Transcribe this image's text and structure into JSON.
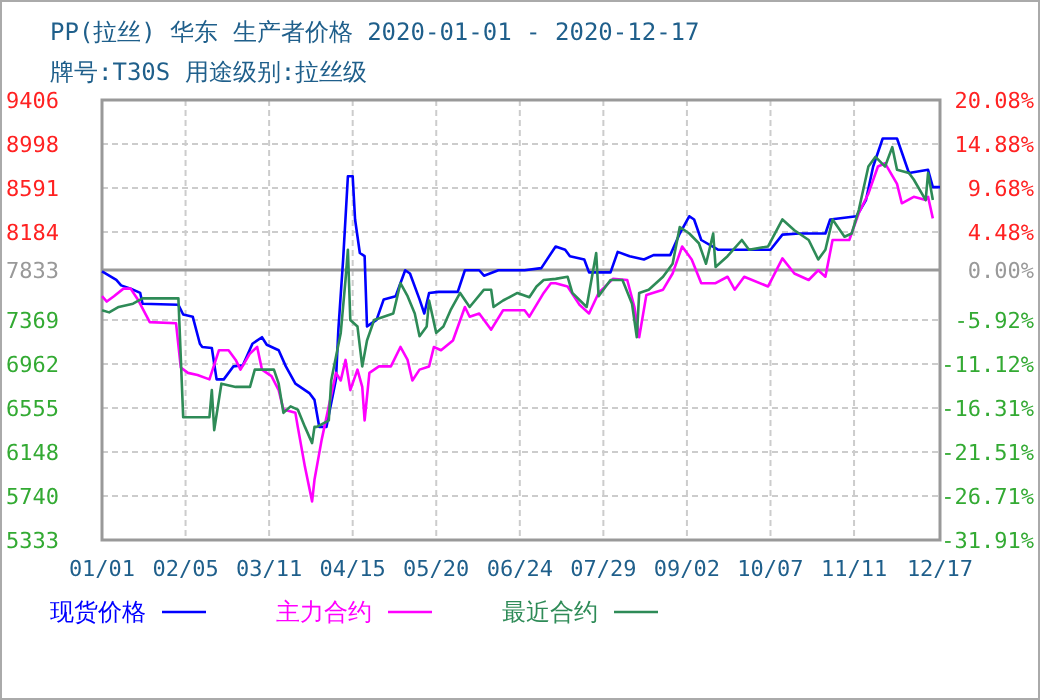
{
  "chart_data": {
    "type": "line",
    "title": "PP(拉丝) 华东 生产者价格 2020-01-01 - 2020-12-17",
    "subtitle": "牌号:T30S 用途级别:拉丝级",
    "xlim": [
      "2020-01-01",
      "2020-12-17"
    ],
    "xticks": [
      {
        "value": "2020-01-01",
        "label": "01/01"
      },
      {
        "value": "2020-02-05",
        "label": "02/05"
      },
      {
        "value": "2020-03-11",
        "label": "03/11"
      },
      {
        "value": "2020-04-15",
        "label": "04/15"
      },
      {
        "value": "2020-05-20",
        "label": "05/20"
      },
      {
        "value": "2020-06-24",
        "label": "06/24"
      },
      {
        "value": "2020-07-29",
        "label": "07/29"
      },
      {
        "value": "2020-09-02",
        "label": "09/02"
      },
      {
        "value": "2020-10-07",
        "label": "10/07"
      },
      {
        "value": "2020-11-11",
        "label": "11/11"
      },
      {
        "value": "2020-12-17",
        "label": "12/17"
      }
    ],
    "ylim": [
      5333,
      9406
    ],
    "yticks": [
      9406,
      8998,
      8591,
      8184,
      7833,
      7369,
      6962,
      6555,
      6148,
      5740,
      5333
    ],
    "y2lim": [
      -31.91,
      20.08
    ],
    "y2ticks": [
      {
        "value": 20.08,
        "label": "20.08%"
      },
      {
        "value": 14.88,
        "label": "14.88%"
      },
      {
        "value": 9.68,
        "label": "9.68%"
      },
      {
        "value": 4.48,
        "label": "4.48%"
      },
      {
        "value": 0,
        "label": "0.00%"
      },
      {
        "value": -5.92,
        "label": "-5.92%"
      },
      {
        "value": -11.12,
        "label": "-11.12%"
      },
      {
        "value": -16.31,
        "label": "-16.31%"
      },
      {
        "value": -21.51,
        "label": "-21.51%"
      },
      {
        "value": -26.71,
        "label": "-26.71%"
      },
      {
        "value": -31.91,
        "label": "-31.91%"
      }
    ],
    "ref_lines": [
      {
        "axis": "y",
        "value": 7833,
        "color": "#999999"
      }
    ],
    "grid": true,
    "legend": "bottom",
    "marker": "none",
    "line_style": "solid",
    "series": [
      {
        "name": "现货价格",
        "color": "#0000ff",
        "x": [
          "2020-01-01",
          "2020-01-07",
          "2020-01-09",
          "2020-01-13",
          "2020-01-17",
          "2020-01-18",
          "2020-02-02",
          "2020-02-04",
          "2020-02-08",
          "2020-02-11",
          "2020-02-12",
          "2020-02-16",
          "2020-02-18",
          "2020-02-21",
          "2020-02-25",
          "2020-02-29",
          "2020-03-04",
          "2020-03-08",
          "2020-03-10",
          "2020-03-15",
          "2020-03-18",
          "2020-03-22",
          "2020-03-28",
          "2020-03-30",
          "2020-04-01",
          "2020-04-04",
          "2020-04-08",
          "2020-04-09",
          "2020-04-11",
          "2020-04-13",
          "2020-04-15",
          "2020-04-16",
          "2020-04-18",
          "2020-04-20",
          "2020-04-21",
          "2020-04-25",
          "2020-04-28",
          "2020-05-03",
          "2020-05-07",
          "2020-05-09",
          "2020-05-13",
          "2020-05-15",
          "2020-05-17",
          "2020-05-21",
          "2020-05-29",
          "2020-06-01",
          "2020-06-07",
          "2020-06-09",
          "2020-06-15",
          "2020-06-26",
          "2020-07-03",
          "2020-07-09",
          "2020-07-13",
          "2020-07-15",
          "2020-07-21",
          "2020-07-23",
          "2020-08-01",
          "2020-08-04",
          "2020-08-09",
          "2020-08-15",
          "2020-08-19",
          "2020-08-26",
          "2020-08-30",
          "2020-09-03",
          "2020-09-05",
          "2020-09-08",
          "2020-09-15",
          "2020-10-07",
          "2020-10-12",
          "2020-10-19",
          "2020-10-30",
          "2020-11-01",
          "2020-11-12",
          "2020-11-16",
          "2020-11-19",
          "2020-11-23",
          "2020-11-29",
          "2020-12-04",
          "2020-12-12",
          "2020-12-14",
          "2020-12-17"
        ],
        "values": [
          7820,
          7740,
          7690,
          7660,
          7620,
          7520,
          7510,
          7420,
          7400,
          7150,
          7120,
          7110,
          6820,
          6820,
          6940,
          6950,
          7150,
          7210,
          7140,
          7090,
          6940,
          6780,
          6690,
          6630,
          6380,
          6380,
          6820,
          7280,
          7930,
          8700,
          8700,
          8300,
          7990,
          7960,
          7310,
          7370,
          7560,
          7590,
          7830,
          7800,
          7560,
          7430,
          7620,
          7630,
          7630,
          7830,
          7830,
          7780,
          7830,
          7830,
          7850,
          8050,
          8020,
          7960,
          7930,
          7810,
          7810,
          8000,
          7960,
          7930,
          7970,
          7970,
          8170,
          8330,
          8300,
          8110,
          8020,
          8020,
          8160,
          8170,
          8170,
          8300,
          8330,
          8480,
          8790,
          9050,
          9050,
          8730,
          8760,
          8600,
          8600
        ]
      },
      {
        "name": "主力合约",
        "color": "#ff00ff",
        "x": [
          "2020-01-01",
          "2020-01-03",
          "2020-01-06",
          "2020-01-10",
          "2020-01-13",
          "2020-01-16",
          "2020-01-21",
          "2020-02-01",
          "2020-02-03",
          "2020-02-06",
          "2020-02-10",
          "2020-02-15",
          "2020-02-19",
          "2020-02-23",
          "2020-02-26",
          "2020-02-28",
          "2020-03-03",
          "2020-03-06",
          "2020-03-08",
          "2020-03-12",
          "2020-03-15",
          "2020-03-17",
          "2020-03-22",
          "2020-03-23",
          "2020-03-26",
          "2020-03-29",
          "2020-03-30",
          "2020-04-02",
          "2020-04-05",
          "2020-04-08",
          "2020-04-10",
          "2020-04-12",
          "2020-04-14",
          "2020-04-17",
          "2020-04-19",
          "2020-04-20",
          "2020-04-22",
          "2020-04-26",
          "2020-05-01",
          "2020-05-05",
          "2020-05-08",
          "2020-05-10",
          "2020-05-13",
          "2020-05-17",
          "2020-05-19",
          "2020-05-22",
          "2020-05-27",
          "2020-06-01",
          "2020-06-03",
          "2020-06-07",
          "2020-06-12",
          "2020-06-17",
          "2020-06-26",
          "2020-06-28",
          "2020-07-04",
          "2020-07-07",
          "2020-07-09",
          "2020-07-14",
          "2020-07-19",
          "2020-07-23",
          "2020-07-27",
          "2020-08-02",
          "2020-08-08",
          "2020-08-11",
          "2020-08-13",
          "2020-08-16",
          "2020-08-23",
          "2020-08-27",
          "2020-08-31",
          "2020-09-04",
          "2020-09-08",
          "2020-09-14",
          "2020-09-19",
          "2020-09-22",
          "2020-09-26",
          "2020-10-06",
          "2020-10-12",
          "2020-10-17",
          "2020-10-23",
          "2020-10-27",
          "2020-10-30",
          "2020-11-02",
          "2020-11-09",
          "2020-11-13",
          "2020-11-17",
          "2020-11-21",
          "2020-11-24",
          "2020-11-29",
          "2020-12-01",
          "2020-12-06",
          "2020-12-11",
          "2020-12-12",
          "2020-12-14"
        ],
        "values": [
          7590,
          7540,
          7590,
          7660,
          7660,
          7560,
          7350,
          7340,
          6930,
          6880,
          6860,
          6820,
          7090,
          7090,
          7000,
          6910,
          7060,
          7120,
          6910,
          6850,
          6720,
          6540,
          6510,
          6380,
          6010,
          5690,
          5890,
          6260,
          6570,
          6880,
          6810,
          7000,
          6720,
          6910,
          6750,
          6440,
          6880,
          6940,
          6940,
          7120,
          7000,
          6810,
          6910,
          6940,
          7120,
          7090,
          7180,
          7490,
          7400,
          7430,
          7280,
          7460,
          7460,
          7400,
          7620,
          7710,
          7710,
          7680,
          7510,
          7430,
          7620,
          7750,
          7740,
          7490,
          7210,
          7600,
          7650,
          7800,
          8050,
          7930,
          7710,
          7710,
          7770,
          7650,
          7770,
          7680,
          7940,
          7800,
          7740,
          7830,
          7770,
          8110,
          8110,
          8360,
          8540,
          8790,
          8820,
          8630,
          8450,
          8510,
          8480,
          8510,
          8310
        ]
      },
      {
        "name": "最近合约",
        "color": "#2e8b57",
        "x": [
          "2020-01-01",
          "2020-01-04",
          "2020-01-08",
          "2020-01-14",
          "2020-01-18",
          "2020-02-02",
          "2020-02-04",
          "2020-02-15",
          "2020-02-16",
          "2020-02-17",
          "2020-02-20",
          "2020-02-26",
          "2020-03-03",
          "2020-03-05",
          "2020-03-13",
          "2020-03-15",
          "2020-03-17",
          "2020-03-20",
          "2020-03-23",
          "2020-03-26",
          "2020-03-29",
          "2020-03-30",
          "2020-03-31",
          "2020-04-05",
          "2020-04-06",
          "2020-04-10",
          "2020-04-12",
          "2020-04-13",
          "2020-04-14",
          "2020-04-17",
          "2020-04-19",
          "2020-04-21",
          "2020-04-24",
          "2020-05-02",
          "2020-05-05",
          "2020-05-08",
          "2020-05-11",
          "2020-05-13",
          "2020-05-16",
          "2020-05-17",
          "2020-05-20",
          "2020-05-23",
          "2020-05-26",
          "2020-05-30",
          "2020-06-03",
          "2020-06-09",
          "2020-06-12",
          "2020-06-13",
          "2020-06-17",
          "2020-06-23",
          "2020-06-28",
          "2020-07-01",
          "2020-07-04",
          "2020-07-09",
          "2020-07-14",
          "2020-07-16",
          "2020-07-22",
          "2020-07-26",
          "2020-07-27",
          "2020-08-01",
          "2020-08-06",
          "2020-08-10",
          "2020-08-12",
          "2020-08-13",
          "2020-08-17",
          "2020-08-23",
          "2020-08-27",
          "2020-08-30",
          "2020-09-03",
          "2020-09-07",
          "2020-09-10",
          "2020-09-13",
          "2020-09-14",
          "2020-09-19",
          "2020-09-25",
          "2020-09-28",
          "2020-10-06",
          "2020-10-12",
          "2020-10-17",
          "2020-10-23",
          "2020-10-27",
          "2020-10-30",
          "2020-11-02",
          "2020-11-07",
          "2020-11-10",
          "2020-11-13",
          "2020-11-17",
          "2020-11-20",
          "2020-11-24",
          "2020-11-27",
          "2020-11-29",
          "2020-12-04",
          "2020-12-06",
          "2020-12-11",
          "2020-12-12",
          "2020-12-14"
        ],
        "values": [
          7460,
          7440,
          7490,
          7520,
          7570,
          7570,
          6470,
          6470,
          6720,
          6350,
          6780,
          6750,
          6750,
          6910,
          6910,
          6780,
          6510,
          6570,
          6540,
          6380,
          6230,
          6380,
          6380,
          6440,
          6810,
          7250,
          7740,
          8020,
          7370,
          7310,
          6940,
          7180,
          7370,
          7430,
          7710,
          7590,
          7430,
          7220,
          7310,
          7550,
          7250,
          7310,
          7460,
          7620,
          7490,
          7650,
          7650,
          7490,
          7550,
          7620,
          7580,
          7680,
          7740,
          7750,
          7770,
          7620,
          7490,
          7990,
          7590,
          7740,
          7740,
          7520,
          7210,
          7620,
          7650,
          7770,
          7890,
          8230,
          8170,
          8080,
          7890,
          8170,
          7860,
          7960,
          8110,
          8020,
          8050,
          8300,
          8200,
          8110,
          7930,
          8020,
          8300,
          8140,
          8170,
          8390,
          8790,
          8880,
          8790,
          8970,
          8760,
          8730,
          8670,
          8480,
          8730,
          8480
        ]
      }
    ]
  }
}
